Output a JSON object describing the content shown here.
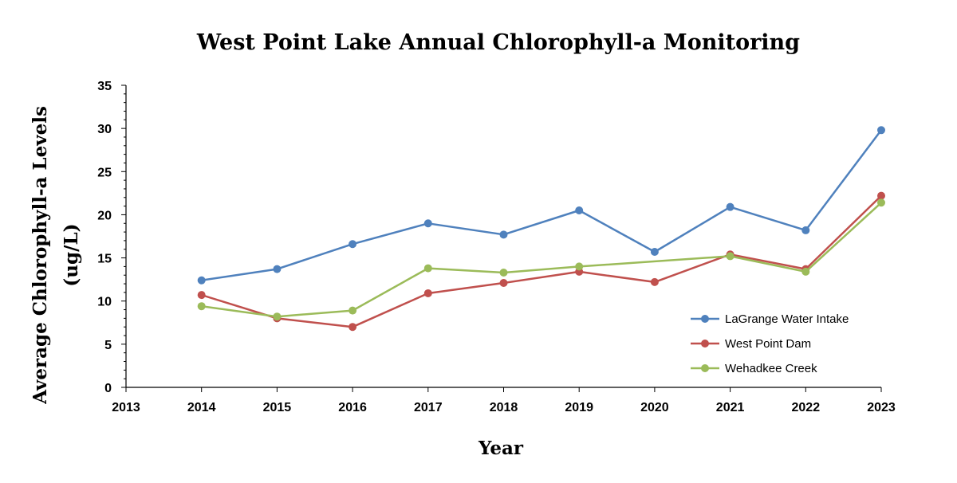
{
  "chart_data": {
    "type": "line",
    "title": "West Point Lake Annual Chlorophyll-a Monitoring",
    "xlabel": "Year",
    "ylabel_lines": [
      "Average Chlorophyll-a Levels",
      "(ug/L)"
    ],
    "xlim": [
      2013,
      2023
    ],
    "ylim": [
      0,
      35
    ],
    "x_ticks": [
      2013,
      2014,
      2015,
      2016,
      2017,
      2018,
      2019,
      2020,
      2021,
      2022,
      2023
    ],
    "y_ticks": [
      0,
      5,
      10,
      15,
      20,
      25,
      30,
      35
    ],
    "grid": false,
    "legend_position": "right",
    "series": [
      {
        "name": "LaGrange Water Intake",
        "color": "#4f81bd",
        "x": [
          2014,
          2015,
          2016,
          2017,
          2018,
          2019,
          2020,
          2021,
          2022,
          2023
        ],
        "values": [
          12.4,
          13.7,
          16.6,
          19.0,
          17.7,
          20.5,
          15.7,
          20.9,
          18.2,
          29.8
        ]
      },
      {
        "name": "West Point Dam",
        "color": "#c0504d",
        "x": [
          2014,
          2015,
          2016,
          2017,
          2018,
          2019,
          2020,
          2021,
          2022,
          2023
        ],
        "values": [
          10.7,
          8.0,
          7.0,
          10.9,
          12.1,
          13.4,
          12.2,
          15.4,
          13.7,
          22.2
        ]
      },
      {
        "name": "Wehadkee Creek",
        "color": "#9bbb59",
        "x": [
          2014,
          2015,
          2016,
          2017,
          2018,
          2019,
          2021,
          2022,
          2023
        ],
        "values": [
          9.4,
          8.2,
          8.9,
          13.8,
          13.3,
          14.0,
          15.2,
          13.4,
          21.4
        ]
      }
    ]
  }
}
